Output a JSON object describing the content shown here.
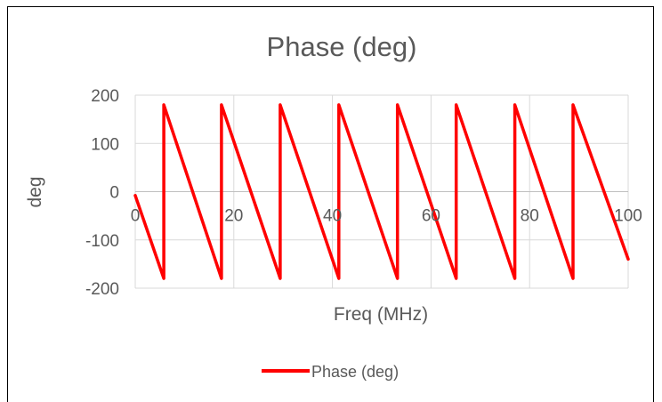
{
  "chart_data": {
    "type": "line",
    "title": "Phase (deg)",
    "xlabel": "Freq (MHz)",
    "ylabel": "deg",
    "xlim": [
      0,
      100
    ],
    "ylim": [
      -200,
      200
    ],
    "x_ticks": [
      0,
      20,
      40,
      60,
      80,
      100
    ],
    "y_ticks": [
      -200,
      -100,
      0,
      100,
      200
    ],
    "x_tick_labels": [
      "0",
      "20",
      "40",
      "60",
      "80",
      "100"
    ],
    "y_tick_labels": [
      "-200",
      "-100",
      "0",
      "100",
      "200"
    ],
    "grid": true,
    "legend_position": "bottom",
    "series": [
      {
        "name": "Phase (deg)",
        "color": "#ff0000",
        "x": [
          0,
          5.8,
          5.8,
          17.5,
          17.5,
          29.4,
          29.4,
          41.3,
          41.3,
          53.2,
          53.2,
          65.1,
          65.1,
          77.0,
          77.0,
          88.8,
          88.8,
          100
        ],
        "y": [
          -8,
          -180,
          180,
          -180,
          180,
          -180,
          180,
          -180,
          180,
          -180,
          180,
          -180,
          180,
          -180,
          180,
          -180,
          180,
          -140
        ]
      }
    ]
  }
}
